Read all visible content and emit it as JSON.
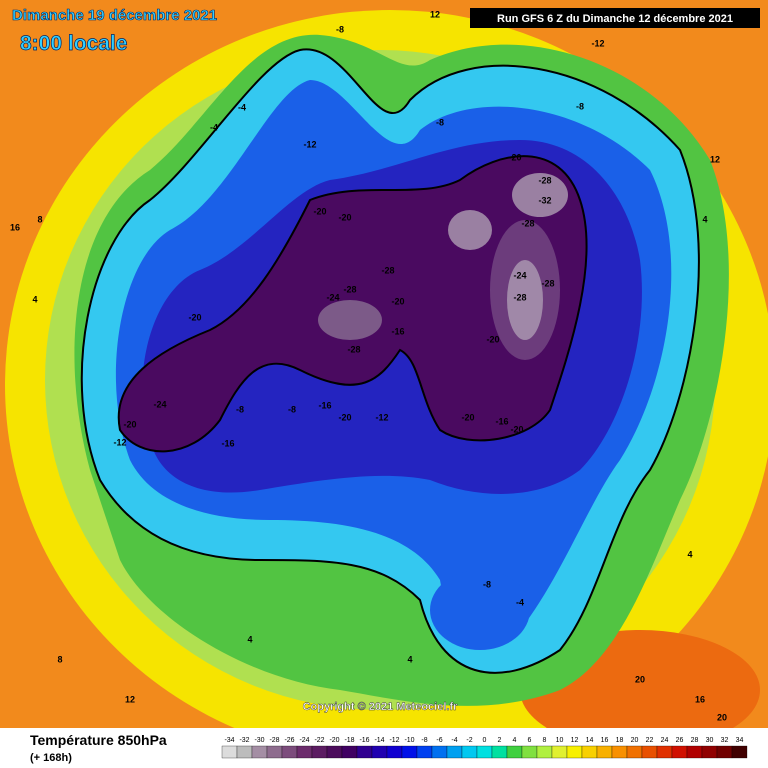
{
  "header": {
    "date": "Dimanche 19 décembre 2021",
    "time": "8:00 locale",
    "run": "Run GFS 6 Z du Dimanche 12 décembre 2021"
  },
  "copyright": "Copyright © 2021 Meteociel.fr",
  "footer": {
    "title": "Température 850hPa",
    "lead": "(+ 168h)"
  },
  "scale": {
    "values": [
      -34,
      -32,
      -30,
      -28,
      -26,
      -24,
      -22,
      -20,
      -18,
      -16,
      -14,
      -12,
      -10,
      -8,
      -6,
      -4,
      -2,
      0,
      2,
      4,
      6,
      8,
      10,
      12,
      14,
      16,
      18,
      20,
      22,
      24,
      26,
      28,
      30,
      32,
      34
    ],
    "colors": [
      "#dcdcdc",
      "#bcbcbc",
      "#a48ea4",
      "#8e6c8e",
      "#7c4c7c",
      "#6c2c6c",
      "#5c1c62",
      "#4c0c5c",
      "#400062",
      "#300090",
      "#2000b0",
      "#1000d0",
      "#0010e8",
      "#0040f0",
      "#0070f0",
      "#00a0f0",
      "#00c8f0",
      "#00e0e0",
      "#00e0a0",
      "#40d040",
      "#80e040",
      "#b0f040",
      "#e0f030",
      "#f8f000",
      "#f8d000",
      "#f8b000",
      "#f89000",
      "#f07000",
      "#e85000",
      "#e03000",
      "#d01000",
      "#b00000",
      "#900000",
      "#700000",
      "#400000"
    ]
  },
  "contour_labels": [
    -24,
    -20,
    -12,
    -16,
    -20,
    -24,
    -28,
    -28,
    -20,
    -16,
    -28,
    -20,
    -20,
    -20,
    -28,
    -32,
    -28,
    -28,
    -20,
    -24,
    -28,
    -20,
    -16,
    -20,
    -12,
    -16,
    -20,
    -8,
    -8,
    -12,
    -4,
    -4,
    -8,
    -8,
    -12,
    -8,
    12,
    8,
    16,
    12,
    4,
    4,
    20,
    16,
    -8,
    -4,
    4,
    4,
    8,
    12,
    4,
    20
  ]
}
